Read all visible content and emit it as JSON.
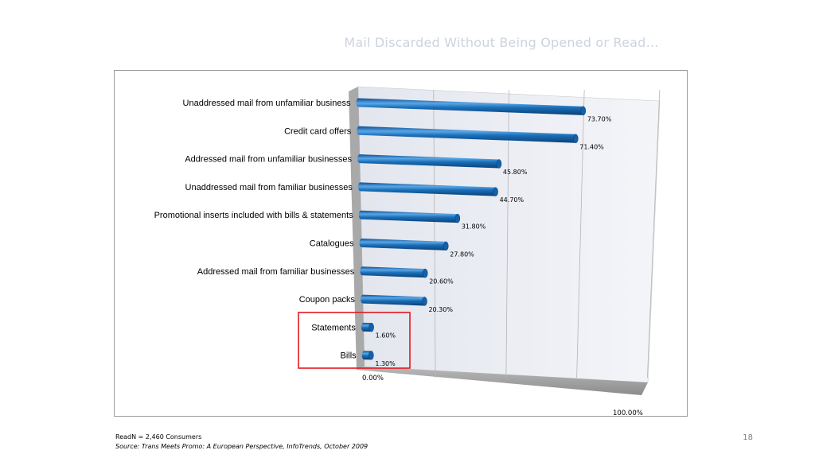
{
  "slide": {
    "title": "Mail Discarded Without Being Opened or Read…",
    "footnote": "ReadN = 2,460 Consumers",
    "source": "Source: Trans Meets Promo: A European Perspective, InfoTrends, October 2009",
    "page_number": "18"
  },
  "chart_data": {
    "type": "bar",
    "orientation": "horizontal",
    "style": "3d-cylinder",
    "categories": [
      "Unaddressed mail from unfamiliar business",
      "Credit card offers",
      "Addressed mail from unfamiliar businesses",
      "Unaddressed mail from familiar businesses",
      "Promotional inserts included with bills & statements",
      "Catalogues",
      "Addressed mail from familiar businesses",
      "Coupon packs",
      "Statements",
      "Bills"
    ],
    "values": [
      73.7,
      71.4,
      45.8,
      44.7,
      31.8,
      27.8,
      20.6,
      20.3,
      1.6,
      1.3
    ],
    "value_labels": [
      "73.70%",
      "71.40%",
      "45.80%",
      "44.70%",
      "31.80%",
      "27.80%",
      "20.60%",
      "20.30%",
      "1.60%",
      "1.30%"
    ],
    "axis_min_label": "0.00%",
    "axis_max_label": "100.00%",
    "xlim": [
      0,
      100
    ],
    "grid": true,
    "legend": "none",
    "highlighted_categories": [
      "Statements",
      "Bills"
    ],
    "colors": {
      "bar": "#1a6fb8",
      "bar_highlight": "#5aa6e6",
      "bar_shadow": "#0b3f74",
      "highlight_box": "#e0191f"
    }
  }
}
